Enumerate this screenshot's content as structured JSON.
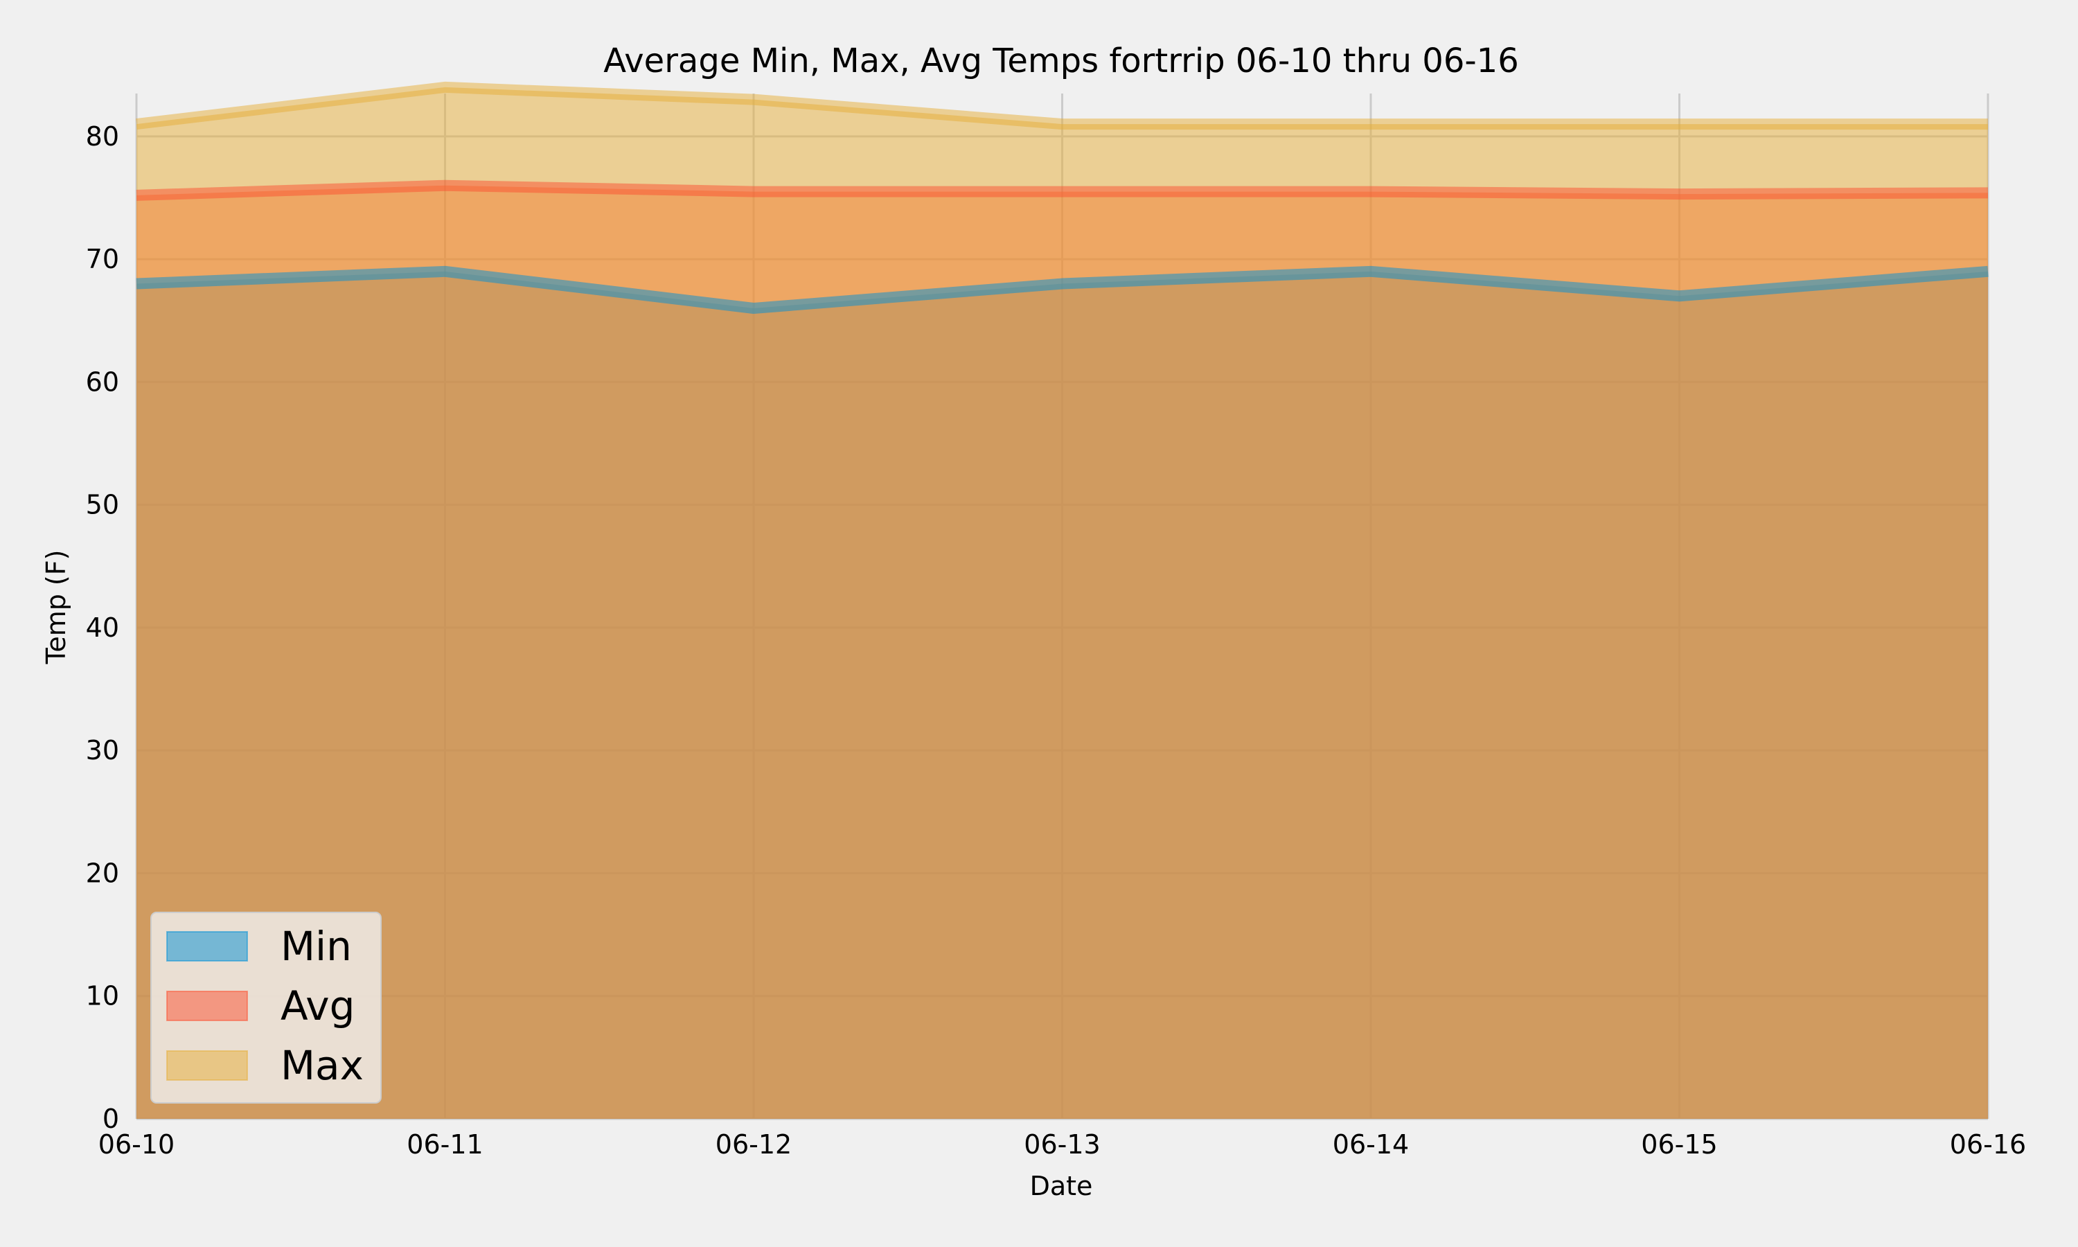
{
  "chart_data": {
    "type": "area",
    "title": "Average Min, Max, Avg Temps fortrrip 06-10 thru 06-16",
    "xlabel": "Date",
    "ylabel": "Temp (F)",
    "categories": [
      "06-10",
      "06-11",
      "06-12",
      "06-13",
      "06-14",
      "06-15",
      "06-16"
    ],
    "ylim": [
      0,
      88
    ],
    "yticks": [
      0,
      10,
      20,
      30,
      40,
      50,
      60,
      70,
      80
    ],
    "grid": true,
    "stacked": false,
    "legend_position": "lower-left",
    "series": [
      {
        "name": "Min",
        "values": [
          68,
          69,
          66,
          68,
          69,
          67,
          69
        ],
        "color": "#008fd5"
      },
      {
        "name": "Avg",
        "values": [
          75.2,
          76,
          75.5,
          75.5,
          75.5,
          75.3,
          75.4
        ],
        "color": "#fc4f30"
      },
      {
        "name": "Max",
        "values": [
          81,
          84,
          83,
          81,
          81,
          81,
          81
        ],
        "color": "#e5ae38"
      }
    ]
  }
}
